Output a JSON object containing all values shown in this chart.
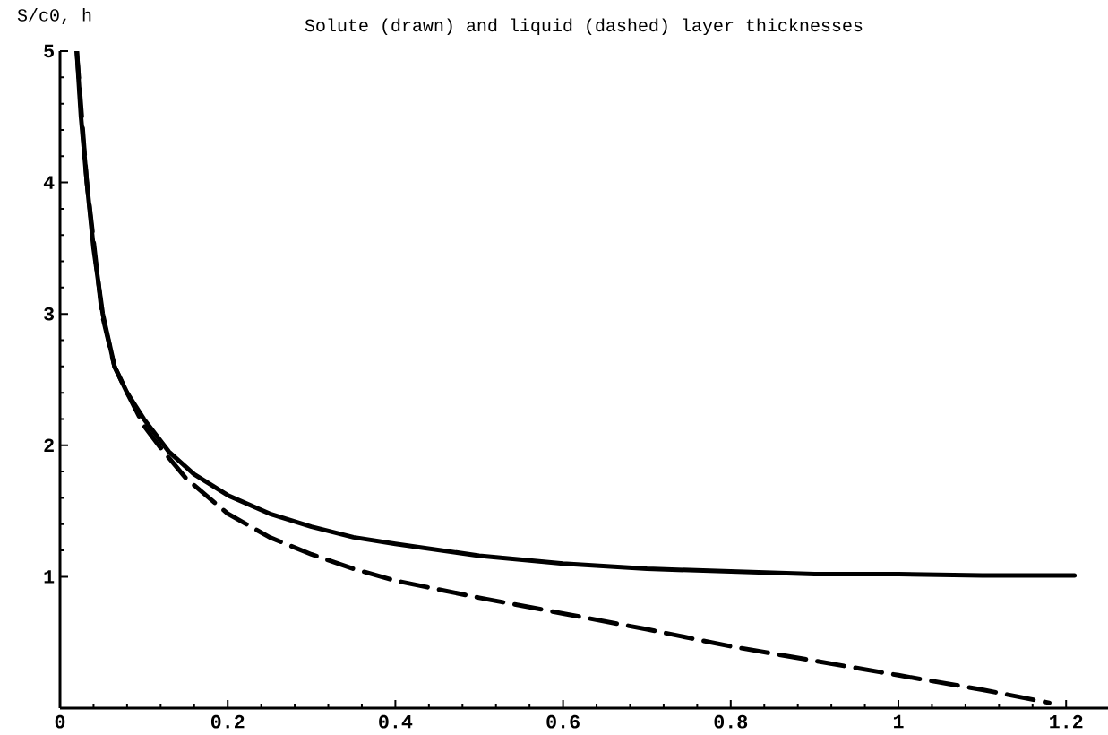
{
  "chart_data": {
    "type": "line",
    "title": "Solute (drawn) and liquid (dashed) layer thicknesses",
    "ylabel": "S/c0, h",
    "xlim": [
      0,
      1.25
    ],
    "ylim": [
      0,
      5
    ],
    "xticks": [
      0,
      0.2,
      0.4,
      0.6,
      0.8,
      1,
      1.2
    ],
    "yticks": [
      1,
      2,
      3,
      4,
      5
    ],
    "grid": false,
    "marker": "none",
    "series": [
      {
        "color": "#000000",
        "line_style": "solid",
        "x": [
          0.02,
          0.025,
          0.032,
          0.04,
          0.051,
          0.065,
          0.08,
          0.1,
          0.13,
          0.16,
          0.2,
          0.25,
          0.3,
          0.35,
          0.4,
          0.5,
          0.6,
          0.7,
          0.8,
          0.9,
          1.0,
          1.1,
          1.21
        ],
        "values": [
          5,
          4.5,
          4,
          3.5,
          3,
          2.6,
          2.4,
          2.2,
          1.95,
          1.78,
          1.62,
          1.48,
          1.38,
          1.3,
          1.25,
          1.16,
          1.1,
          1.06,
          1.04,
          1.02,
          1.02,
          1.01,
          1.01
        ]
      },
      {
        "color": "#000000",
        "line_style": "dashed",
        "x": [
          0.02,
          0.032,
          0.05,
          0.065,
          0.08,
          0.1,
          0.12,
          0.15,
          0.2,
          0.25,
          0.3,
          0.35,
          0.4,
          0.5,
          0.6,
          0.7,
          0.8,
          0.9,
          1.0,
          1.1,
          1.18
        ],
        "values": [
          5,
          4,
          3,
          2.6,
          2.4,
          2.15,
          1.98,
          1.75,
          1.48,
          1.3,
          1.17,
          1.06,
          0.97,
          0.84,
          0.72,
          0.6,
          0.47,
          0.36,
          0.25,
          0.14,
          0.04
        ]
      }
    ]
  }
}
